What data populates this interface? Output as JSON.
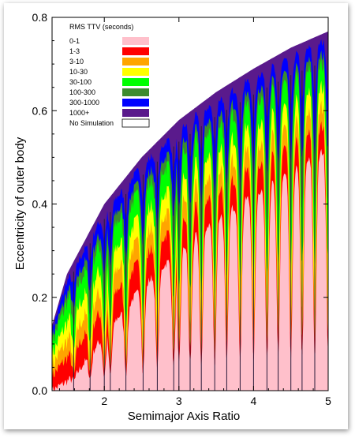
{
  "chart_data": {
    "type": "heatmap",
    "title": "",
    "xlabel": "Semimajor Axis Ratio",
    "ylabel": "Eccentricity of outer body",
    "xlim": [
      1.3,
      5.0
    ],
    "ylim": [
      0.0,
      0.8
    ],
    "x_ticks": [
      2,
      3,
      4,
      5
    ],
    "y_ticks": [
      0.0,
      0.2,
      0.4,
      0.6,
      0.8
    ],
    "x_tick_labels": [
      "2",
      "3",
      "4",
      "5"
    ],
    "y_tick_labels": [
      "0.0",
      "0.2",
      "0.4",
      "0.6",
      "0.8"
    ],
    "legend": {
      "title": "RMS TTV (seconds)",
      "position": "top-left",
      "entries": [
        {
          "label": "0-1",
          "color": "#ffc0cb"
        },
        {
          "label": "1-3",
          "color": "#ff0000"
        },
        {
          "label": "3-10",
          "color": "#ffa500"
        },
        {
          "label": "10-30",
          "color": "#ffff00"
        },
        {
          "label": "30-100",
          "color": "#00ff00"
        },
        {
          "label": "100-300",
          "color": "#3d8b2f"
        },
        {
          "label": "300-1000",
          "color": "#0000ff"
        },
        {
          "label": "1000+",
          "color": "#5a1a8c"
        },
        {
          "label": "No Simulation",
          "color": "#ffffff"
        }
      ]
    },
    "simulation_boundary_ecc": [
      {
        "x": 1.3,
        "e": 0.14
      },
      {
        "x": 1.5,
        "e": 0.25
      },
      {
        "x": 2.0,
        "e": 0.4
      },
      {
        "x": 2.5,
        "e": 0.5
      },
      {
        "x": 3.0,
        "e": 0.58
      },
      {
        "x": 3.5,
        "e": 0.64
      },
      {
        "x": 4.0,
        "e": 0.69
      },
      {
        "x": 4.5,
        "e": 0.735
      },
      {
        "x": 5.0,
        "e": 0.77
      }
    ],
    "pink_region_top_ecc": [
      {
        "x": 1.3,
        "e": 0.0
      },
      {
        "x": 1.6,
        "e": 0.03
      },
      {
        "x": 2.0,
        "e": 0.12
      },
      {
        "x": 2.5,
        "e": 0.22
      },
      {
        "x": 3.0,
        "e": 0.3
      },
      {
        "x": 3.5,
        "e": 0.37
      },
      {
        "x": 4.0,
        "e": 0.42
      },
      {
        "x": 4.5,
        "e": 0.47
      },
      {
        "x": 5.0,
        "e": 0.52
      }
    ],
    "resonance_spikes_x": [
      1.59,
      1.81,
      2.0,
      2.08,
      2.29,
      2.52,
      2.71,
      2.93,
      3.0,
      3.15,
      3.3,
      3.48,
      3.64,
      3.82,
      4.0,
      4.18,
      4.33,
      4.5,
      4.65,
      4.82,
      5.0
    ]
  }
}
